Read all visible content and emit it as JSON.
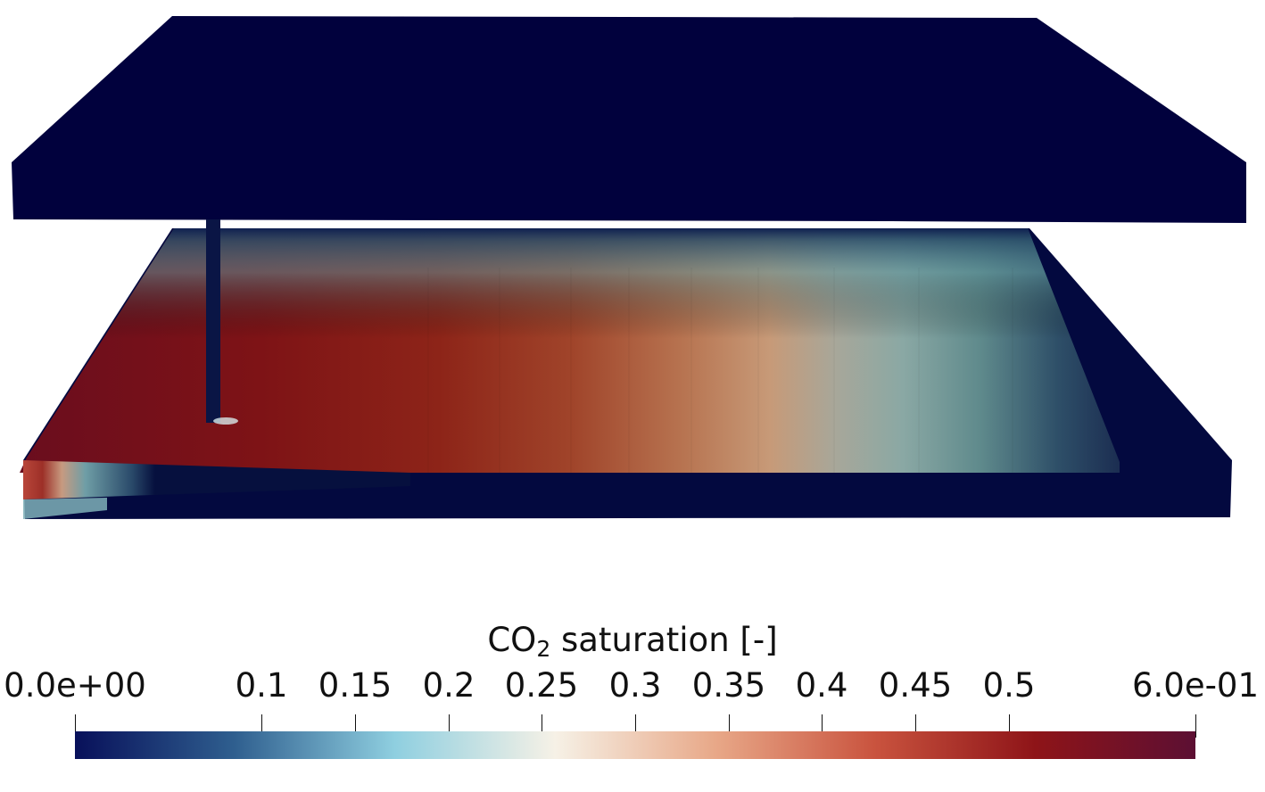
{
  "colorbar": {
    "title_prefix": "CO",
    "title_subscript": "2",
    "title_suffix": " saturation [-]",
    "min": 0.0,
    "max": 0.6,
    "ticks": [
      {
        "value": 0.0,
        "label": "0.0e+00"
      },
      {
        "value": 0.1,
        "label": "0.1"
      },
      {
        "value": 0.15,
        "label": "0.15"
      },
      {
        "value": 0.2,
        "label": "0.2"
      },
      {
        "value": 0.25,
        "label": "0.25"
      },
      {
        "value": 0.3,
        "label": "0.3"
      },
      {
        "value": 0.35,
        "label": "0.35"
      },
      {
        "value": 0.4,
        "label": "0.4"
      },
      {
        "value": 0.45,
        "label": "0.45"
      },
      {
        "value": 0.5,
        "label": "0.5"
      },
      {
        "value": 0.6,
        "label": "6.0e-01"
      }
    ],
    "colormap": [
      "#08105a",
      "#2f5f8f",
      "#8fcfe0",
      "#f6f1e6",
      "#e8a888",
      "#c9533e",
      "#8e1418",
      "#5c0f33"
    ]
  },
  "colors": {
    "background": "#ffffff",
    "caprock": "#01013d",
    "well": "#0a1545"
  }
}
